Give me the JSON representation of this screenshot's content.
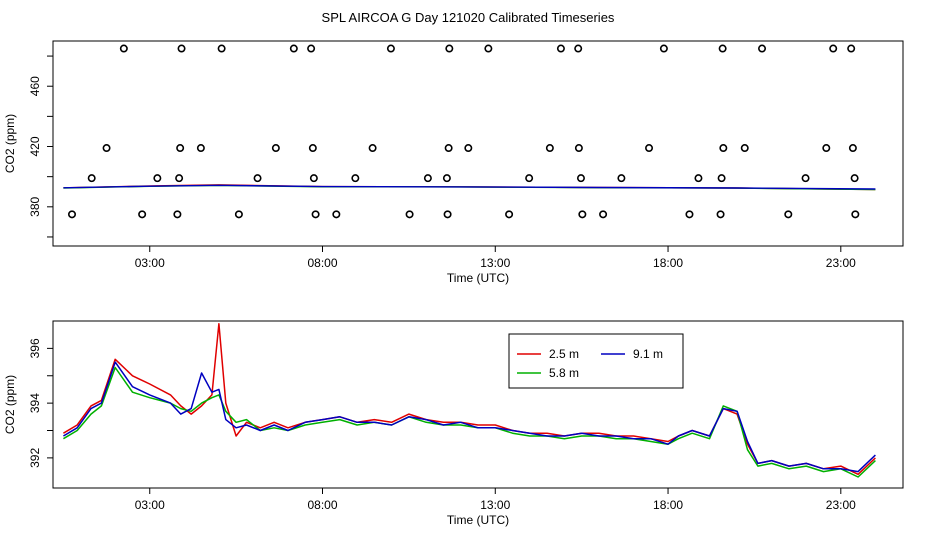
{
  "title": "SPL AIRCOA G  Day 121020  Calibrated Timeseries",
  "colors": {
    "s25": "#e00000",
    "s58": "#00b000",
    "s91": "#0000c0",
    "axis": "#000000"
  },
  "chart_data": [
    {
      "type": "scatter",
      "xlabel": "Time (UTC)",
      "ylabel": "CO2 (ppm)",
      "xlim": [
        0.2,
        24.8
      ],
      "ylim": [
        354,
        490
      ],
      "x_ticks": [
        3,
        8,
        13,
        18,
        23
      ],
      "x_tick_labels": [
        "03:00",
        "08:00",
        "13:00",
        "18:00",
        "23:00"
      ],
      "y_ticks": [
        380,
        420,
        460
      ],
      "y_minor_ticks": [
        360,
        400,
        440,
        480
      ],
      "y_tick_labels": [
        "380",
        "420",
        "460"
      ],
      "reference_points": [
        [
          2.25,
          485
        ],
        [
          3.92,
          485
        ],
        [
          5.08,
          485
        ],
        [
          7.17,
          485
        ],
        [
          7.67,
          485
        ],
        [
          9.98,
          485
        ],
        [
          11.67,
          485
        ],
        [
          12.8,
          485
        ],
        [
          14.9,
          485
        ],
        [
          15.4,
          485
        ],
        [
          17.88,
          485
        ],
        [
          19.58,
          485
        ],
        [
          20.72,
          485
        ],
        [
          22.78,
          485
        ],
        [
          23.3,
          485
        ],
        [
          1.75,
          419
        ],
        [
          3.88,
          419
        ],
        [
          4.48,
          419
        ],
        [
          6.65,
          419
        ],
        [
          7.72,
          419
        ],
        [
          9.45,
          419
        ],
        [
          11.65,
          419
        ],
        [
          12.22,
          419
        ],
        [
          14.58,
          419
        ],
        [
          15.42,
          419
        ],
        [
          17.45,
          419
        ],
        [
          19.6,
          419
        ],
        [
          20.22,
          419
        ],
        [
          22.58,
          419
        ],
        [
          23.35,
          419
        ],
        [
          1.32,
          399
        ],
        [
          3.22,
          399
        ],
        [
          3.85,
          399
        ],
        [
          6.12,
          399
        ],
        [
          7.75,
          399
        ],
        [
          8.95,
          399
        ],
        [
          11.05,
          399
        ],
        [
          11.6,
          399
        ],
        [
          13.98,
          399
        ],
        [
          15.48,
          399
        ],
        [
          16.65,
          399
        ],
        [
          18.88,
          399
        ],
        [
          19.55,
          399
        ],
        [
          21.98,
          399
        ],
        [
          23.4,
          399
        ],
        [
          0.75,
          375
        ],
        [
          2.78,
          375
        ],
        [
          3.8,
          375
        ],
        [
          5.58,
          375
        ],
        [
          7.8,
          375
        ],
        [
          8.4,
          375
        ],
        [
          10.52,
          375
        ],
        [
          11.62,
          375
        ],
        [
          13.4,
          375
        ],
        [
          15.52,
          375
        ],
        [
          16.12,
          375
        ],
        [
          18.62,
          375
        ],
        [
          19.52,
          375
        ],
        [
          21.48,
          375
        ],
        [
          23.42,
          375
        ]
      ],
      "series": [
        {
          "name": "2.5 m",
          "color": "#e00000",
          "x": [
            0.5,
            3.0,
            5.0,
            8.0,
            12.0,
            16.0,
            20.0,
            24.0
          ],
          "values": [
            392.6,
            393.8,
            394.6,
            393.4,
            393.3,
            392.8,
            392.5,
            391.5
          ]
        },
        {
          "name": "5.8 m",
          "color": "#00b000",
          "x": [
            0.5,
            3.0,
            5.0,
            8.0,
            12.0,
            16.0,
            20.0,
            24.0
          ],
          "values": [
            392.5,
            393.6,
            394.2,
            393.3,
            393.2,
            392.7,
            392.4,
            391.4
          ]
        },
        {
          "name": "9.1 m",
          "color": "#0000c0",
          "x": [
            0.5,
            3.0,
            5.0,
            8.0,
            12.0,
            16.0,
            20.0,
            24.0
          ],
          "values": [
            392.6,
            393.7,
            394.3,
            393.4,
            393.2,
            392.8,
            392.5,
            391.8
          ]
        }
      ]
    },
    {
      "type": "line",
      "xlabel": "Time (UTC)",
      "ylabel": "CO2 (ppm)",
      "xlim": [
        0.2,
        24.8
      ],
      "ylim": [
        390.9,
        397.0
      ],
      "x_ticks": [
        3,
        8,
        13,
        18,
        23
      ],
      "x_tick_labels": [
        "03:00",
        "08:00",
        "13:00",
        "18:00",
        "23:00"
      ],
      "y_ticks": [
        392,
        394,
        396
      ],
      "y_minor_ticks": [
        393,
        395
      ],
      "y_tick_labels": [
        "392",
        "394",
        "396"
      ],
      "legend": {
        "position": "top-center",
        "entries": [
          "2.5 m",
          "9.1 m",
          "5.8 m"
        ]
      },
      "series": [
        {
          "name": "2.5 m",
          "color": "#e00000",
          "x": [
            0.5,
            0.9,
            1.3,
            1.6,
            2.0,
            2.5,
            3.0,
            3.6,
            3.9,
            4.2,
            4.5,
            4.8,
            5.0,
            5.2,
            5.5,
            5.8,
            6.2,
            6.6,
            7.0,
            7.5,
            8.0,
            8.5,
            9.0,
            9.5,
            10.0,
            10.5,
            11.0,
            11.5,
            12.0,
            12.5,
            13.0,
            13.5,
            14.0,
            14.5,
            15.0,
            15.5,
            16.0,
            16.5,
            17.0,
            17.5,
            18.0,
            18.3,
            18.7,
            19.2,
            19.6,
            20.0,
            20.3,
            20.6,
            21.0,
            21.5,
            22.0,
            22.5,
            23.0,
            23.5,
            24.0
          ],
          "values": [
            392.9,
            393.2,
            393.9,
            394.1,
            395.6,
            395.0,
            394.7,
            394.3,
            393.9,
            393.6,
            393.9,
            394.3,
            396.9,
            394.0,
            392.8,
            393.3,
            393.1,
            393.3,
            393.1,
            393.3,
            393.4,
            393.5,
            393.3,
            393.4,
            393.3,
            393.6,
            393.4,
            393.3,
            393.3,
            393.2,
            393.2,
            393.0,
            392.9,
            392.9,
            392.8,
            392.9,
            392.9,
            392.8,
            392.8,
            392.7,
            392.6,
            392.8,
            393.0,
            392.8,
            393.8,
            393.6,
            392.5,
            391.8,
            391.9,
            391.7,
            391.8,
            391.6,
            391.7,
            391.4,
            392.0
          ]
        },
        {
          "name": "5.8 m",
          "color": "#00b000",
          "x": [
            0.5,
            0.9,
            1.3,
            1.6,
            2.0,
            2.5,
            3.0,
            3.6,
            3.9,
            4.2,
            4.5,
            4.8,
            5.0,
            5.2,
            5.5,
            5.8,
            6.2,
            6.6,
            7.0,
            7.5,
            8.0,
            8.5,
            9.0,
            9.5,
            10.0,
            10.5,
            11.0,
            11.5,
            12.0,
            12.5,
            13.0,
            13.5,
            14.0,
            14.5,
            15.0,
            15.5,
            16.0,
            16.5,
            17.0,
            17.5,
            18.0,
            18.3,
            18.7,
            19.2,
            19.6,
            20.0,
            20.3,
            20.6,
            21.0,
            21.5,
            22.0,
            22.5,
            23.0,
            23.5,
            24.0
          ],
          "values": [
            392.7,
            393.0,
            393.6,
            393.9,
            395.3,
            394.4,
            394.2,
            394.0,
            393.8,
            393.7,
            394.0,
            394.2,
            394.3,
            393.7,
            393.3,
            393.4,
            393.0,
            393.1,
            393.0,
            393.2,
            393.3,
            393.4,
            393.2,
            393.3,
            393.2,
            393.5,
            393.3,
            393.2,
            393.2,
            393.1,
            393.1,
            392.9,
            392.8,
            392.8,
            392.7,
            392.8,
            392.8,
            392.7,
            392.7,
            392.6,
            392.5,
            392.7,
            392.9,
            392.7,
            393.9,
            393.7,
            392.3,
            391.7,
            391.8,
            391.6,
            391.7,
            391.5,
            391.6,
            391.3,
            391.9
          ]
        },
        {
          "name": "9.1 m",
          "color": "#0000c0",
          "x": [
            0.5,
            0.9,
            1.3,
            1.6,
            2.0,
            2.5,
            3.0,
            3.6,
            3.9,
            4.2,
            4.5,
            4.8,
            5.0,
            5.2,
            5.5,
            5.8,
            6.2,
            6.6,
            7.0,
            7.5,
            8.0,
            8.5,
            9.0,
            9.5,
            10.0,
            10.5,
            11.0,
            11.5,
            12.0,
            12.5,
            13.0,
            13.5,
            14.0,
            14.5,
            15.0,
            15.5,
            16.0,
            16.5,
            17.0,
            17.5,
            18.0,
            18.3,
            18.7,
            19.2,
            19.6,
            20.0,
            20.3,
            20.6,
            21.0,
            21.5,
            22.0,
            22.5,
            23.0,
            23.5,
            24.0
          ],
          "values": [
            392.8,
            393.1,
            393.8,
            394.0,
            395.5,
            394.6,
            394.3,
            394.0,
            393.6,
            393.8,
            395.1,
            394.4,
            394.5,
            393.4,
            393.1,
            393.2,
            393.0,
            393.2,
            393.0,
            393.3,
            393.4,
            393.5,
            393.3,
            393.3,
            393.2,
            393.5,
            393.4,
            393.2,
            393.3,
            393.1,
            393.1,
            393.0,
            392.9,
            392.8,
            392.8,
            392.9,
            392.8,
            392.8,
            392.7,
            392.7,
            392.5,
            392.8,
            393.0,
            392.8,
            393.8,
            393.7,
            392.6,
            391.8,
            391.9,
            391.7,
            391.8,
            391.6,
            391.6,
            391.5,
            392.1
          ]
        }
      ]
    }
  ]
}
